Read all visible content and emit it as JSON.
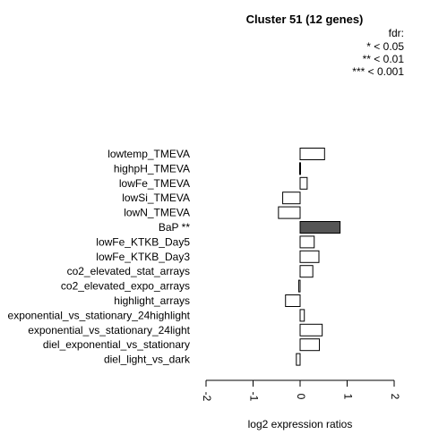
{
  "chart_data": {
    "type": "bar",
    "orientation": "horizontal",
    "title": "Cluster 51 (12 genes)",
    "legend": {
      "title": "fdr:",
      "entries": [
        "* < 0.05",
        "** < 0.01",
        "*** < 0.001"
      ],
      "placement": "top-right"
    },
    "categories": [
      "lowtemp_TMEVA",
      "highpH_TMEVA",
      "lowFe_TMEVA",
      "lowSi_TMEVA",
      "lowN_TMEVA",
      "BaP **",
      "lowFe_KTKB_Day5",
      "lowFe_KTKB_Day3",
      "co2_elevated_stat_arrays",
      "co2_elevated_expo_arrays",
      "highlight_arrays",
      "exponential_vs_stationary_24highlight",
      "exponential_vs_stationary_24light",
      "diel_exponential_vs_stationary",
      "diel_light_vs_dark"
    ],
    "values": [
      0.52,
      -0.01,
      0.15,
      -0.37,
      -0.46,
      0.85,
      0.3,
      0.4,
      0.27,
      -0.03,
      -0.31,
      0.09,
      0.47,
      0.41,
      -0.08
    ],
    "highlighted": [
      false,
      false,
      false,
      false,
      false,
      true,
      false,
      false,
      false,
      false,
      false,
      false,
      false,
      false,
      false
    ],
    "xlabel": "log2 expression ratios",
    "xlim": [
      -2,
      2
    ],
    "xticks": [
      "-2",
      "-1",
      "0",
      "1",
      "2"
    ],
    "grid": false,
    "colors": {
      "normal": "#ffffff",
      "highlight": "#555555",
      "stroke": "#000000"
    }
  }
}
